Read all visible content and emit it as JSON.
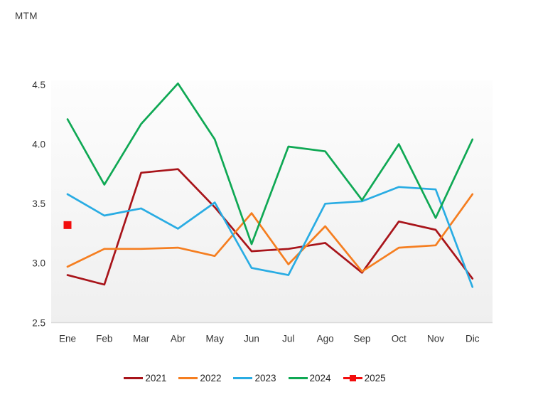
{
  "title": "MTM",
  "colors": {
    "background": "#ffffff",
    "plot_gradient_top": "#fdfdfd",
    "plot_gradient_bottom": "#efefef",
    "plot_bottom_edge": "#d9d9d9",
    "axis_text": "#333333",
    "legend_text": "#1f1f1f"
  },
  "chart_data": {
    "type": "line",
    "title": "MTM",
    "categories": [
      "Ene",
      "Feb",
      "Mar",
      "Abr",
      "May",
      "Jun",
      "Jul",
      "Ago",
      "Sep",
      "Oct",
      "Nov",
      "Dic"
    ],
    "series": [
      {
        "name": "2021",
        "color": "#A8141A",
        "line": true,
        "values": [
          2.9,
          2.82,
          3.76,
          3.79,
          3.47,
          3.1,
          3.12,
          3.17,
          2.92,
          3.35,
          3.28,
          2.87
        ]
      },
      {
        "name": "2022",
        "color": "#F57E20",
        "line": true,
        "values": [
          2.97,
          3.12,
          3.12,
          3.13,
          3.06,
          3.42,
          2.99,
          3.31,
          2.93,
          3.13,
          3.15,
          3.58
        ]
      },
      {
        "name": "2023",
        "color": "#29ACE3",
        "line": true,
        "values": [
          3.58,
          3.4,
          3.46,
          3.29,
          3.51,
          2.96,
          2.9,
          3.5,
          3.52,
          3.64,
          3.62,
          2.8
        ]
      },
      {
        "name": "2024",
        "color": "#0FA854",
        "line": true,
        "values": [
          4.21,
          3.66,
          4.17,
          4.51,
          4.04,
          3.16,
          3.98,
          3.94,
          3.53,
          4.0,
          3.38,
          4.04
        ]
      },
      {
        "name": "2025",
        "color": "#F20D0D",
        "line": false,
        "marker": "square",
        "values": [
          3.32,
          null,
          null,
          null,
          null,
          null,
          null,
          null,
          null,
          null,
          null,
          null
        ]
      }
    ],
    "xlabel": "",
    "ylabel": "",
    "ylim": [
      2.5,
      4.5
    ],
    "yticks": [
      2.5,
      3.0,
      3.5,
      4.0,
      4.5
    ],
    "grid": false,
    "legend_position": "bottom"
  }
}
